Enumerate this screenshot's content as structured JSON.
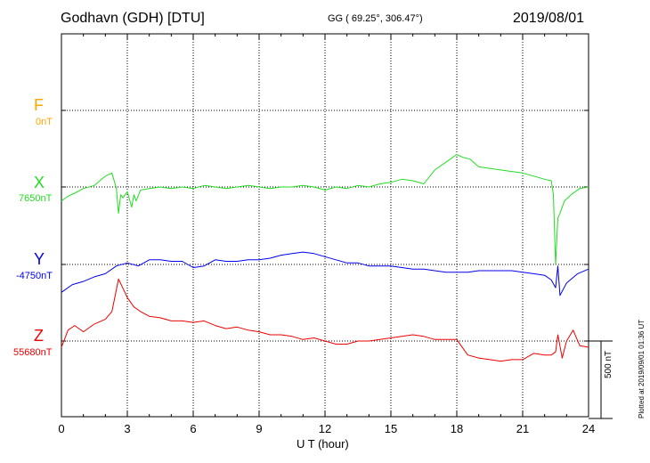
{
  "header": {
    "station": "Godhavn (GDH)  [DTU]",
    "coords": "GG ( 69.25°, 306.47°)",
    "date": "2019/08/01"
  },
  "plotted_note": "Plotted at 2019/09/01 01:36 UT",
  "chart_data": {
    "type": "line",
    "xlabel": "U T (hour)",
    "xlim": [
      0,
      24
    ],
    "xticks": [
      "0",
      "3",
      "6",
      "9",
      "12",
      "15",
      "18",
      "21",
      "24"
    ],
    "scale_label": "500 nT",
    "scale_nT": 500,
    "grid": true,
    "series": [
      {
        "name": "F",
        "base_label": "0nT",
        "color": "#ffa500",
        "x": [],
        "y": []
      },
      {
        "name": "X",
        "base_label": "7650nT",
        "color": "#22dd22",
        "x": [
          0,
          0.3,
          0.6,
          1,
          1.5,
          2,
          2.3,
          2.5,
          2.6,
          2.7,
          2.8,
          3,
          3.2,
          3.3,
          3.4,
          3.6,
          4,
          4.5,
          5,
          5.5,
          6,
          6.5,
          7,
          7.5,
          8,
          8.5,
          9,
          9.5,
          10,
          10.5,
          11,
          11.5,
          12,
          12.5,
          13,
          13.5,
          14,
          14.5,
          15,
          15.5,
          16,
          16.5,
          17,
          17.5,
          18,
          18.3,
          18.6,
          19,
          19.5,
          20,
          20.5,
          21,
          21.5,
          22,
          22.3,
          22.4,
          22.5,
          22.6,
          22.7,
          22.9,
          23.2,
          23.6,
          24
        ],
        "y": [
          7560,
          7590,
          7610,
          7640,
          7660,
          7720,
          7740,
          7640,
          7480,
          7600,
          7580,
          7620,
          7520,
          7600,
          7560,
          7630,
          7640,
          7650,
          7640,
          7650,
          7640,
          7660,
          7650,
          7640,
          7650,
          7660,
          7650,
          7640,
          7650,
          7650,
          7660,
          7650,
          7630,
          7650,
          7640,
          7660,
          7650,
          7670,
          7680,
          7700,
          7690,
          7670,
          7760,
          7810,
          7860,
          7840,
          7830,
          7780,
          7770,
          7760,
          7750,
          7740,
          7720,
          7700,
          7690,
          7600,
          7150,
          7450,
          7480,
          7560,
          7600,
          7640,
          7650
        ]
      },
      {
        "name": "Y",
        "base_label": "-4750nT",
        "color": "#0000ee",
        "x": [
          0,
          0.5,
          1,
          1.5,
          2,
          2.5,
          3,
          3.5,
          4,
          4.5,
          5,
          5.5,
          6,
          6.5,
          7,
          7.5,
          8,
          8.5,
          9,
          9.5,
          10,
          10.5,
          11,
          11.5,
          12,
          12.5,
          13,
          13.5,
          14,
          14.5,
          15,
          15.5,
          16,
          16.5,
          17,
          17.5,
          18,
          18.5,
          19,
          19.5,
          20,
          20.5,
          21,
          21.5,
          22,
          22.3,
          22.5,
          22.6,
          22.7,
          23,
          23.5,
          24
        ],
        "y": [
          -4930,
          -4880,
          -4860,
          -4830,
          -4810,
          -4760,
          -4740,
          -4760,
          -4720,
          -4720,
          -4730,
          -4730,
          -4770,
          -4760,
          -4720,
          -4730,
          -4730,
          -4720,
          -4720,
          -4710,
          -4690,
          -4680,
          -4670,
          -4680,
          -4700,
          -4720,
          -4740,
          -4740,
          -4760,
          -4760,
          -4760,
          -4770,
          -4780,
          -4780,
          -4790,
          -4800,
          -4800,
          -4800,
          -4790,
          -4790,
          -4790,
          -4790,
          -4800,
          -4810,
          -4820,
          -4850,
          -4900,
          -4760,
          -4950,
          -4870,
          -4810,
          -4780
        ]
      },
      {
        "name": "Z",
        "base_label": "55680nT",
        "color": "#ee0000",
        "x": [
          0,
          0.3,
          0.6,
          1,
          1.5,
          2,
          2.3,
          2.6,
          2.8,
          3,
          3.3,
          3.6,
          4,
          4.5,
          5,
          5.5,
          6,
          6.5,
          7,
          7.5,
          8,
          8.5,
          9,
          9.5,
          10,
          10.5,
          11,
          11.5,
          12,
          12.5,
          13,
          13.5,
          14,
          14.5,
          15,
          15.5,
          16,
          16.5,
          17,
          17.5,
          18,
          18.5,
          19,
          19.5,
          20,
          20.5,
          21,
          21.5,
          22,
          22.3,
          22.5,
          22.6,
          22.8,
          23,
          23.3,
          23.6,
          24
        ],
        "y": [
          55640,
          55750,
          55780,
          55740,
          55790,
          55820,
          55870,
          56080,
          56020,
          55960,
          55900,
          55870,
          55840,
          55830,
          55810,
          55810,
          55800,
          55810,
          55780,
          55760,
          55770,
          55750,
          55740,
          55720,
          55720,
          55710,
          55690,
          55700,
          55680,
          55660,
          55660,
          55680,
          55680,
          55690,
          55700,
          55710,
          55720,
          55710,
          55690,
          55690,
          55690,
          55590,
          55570,
          55560,
          55550,
          55560,
          55560,
          55600,
          55590,
          55590,
          55610,
          55720,
          55570,
          55680,
          55750,
          55650,
          55640
        ]
      }
    ]
  }
}
